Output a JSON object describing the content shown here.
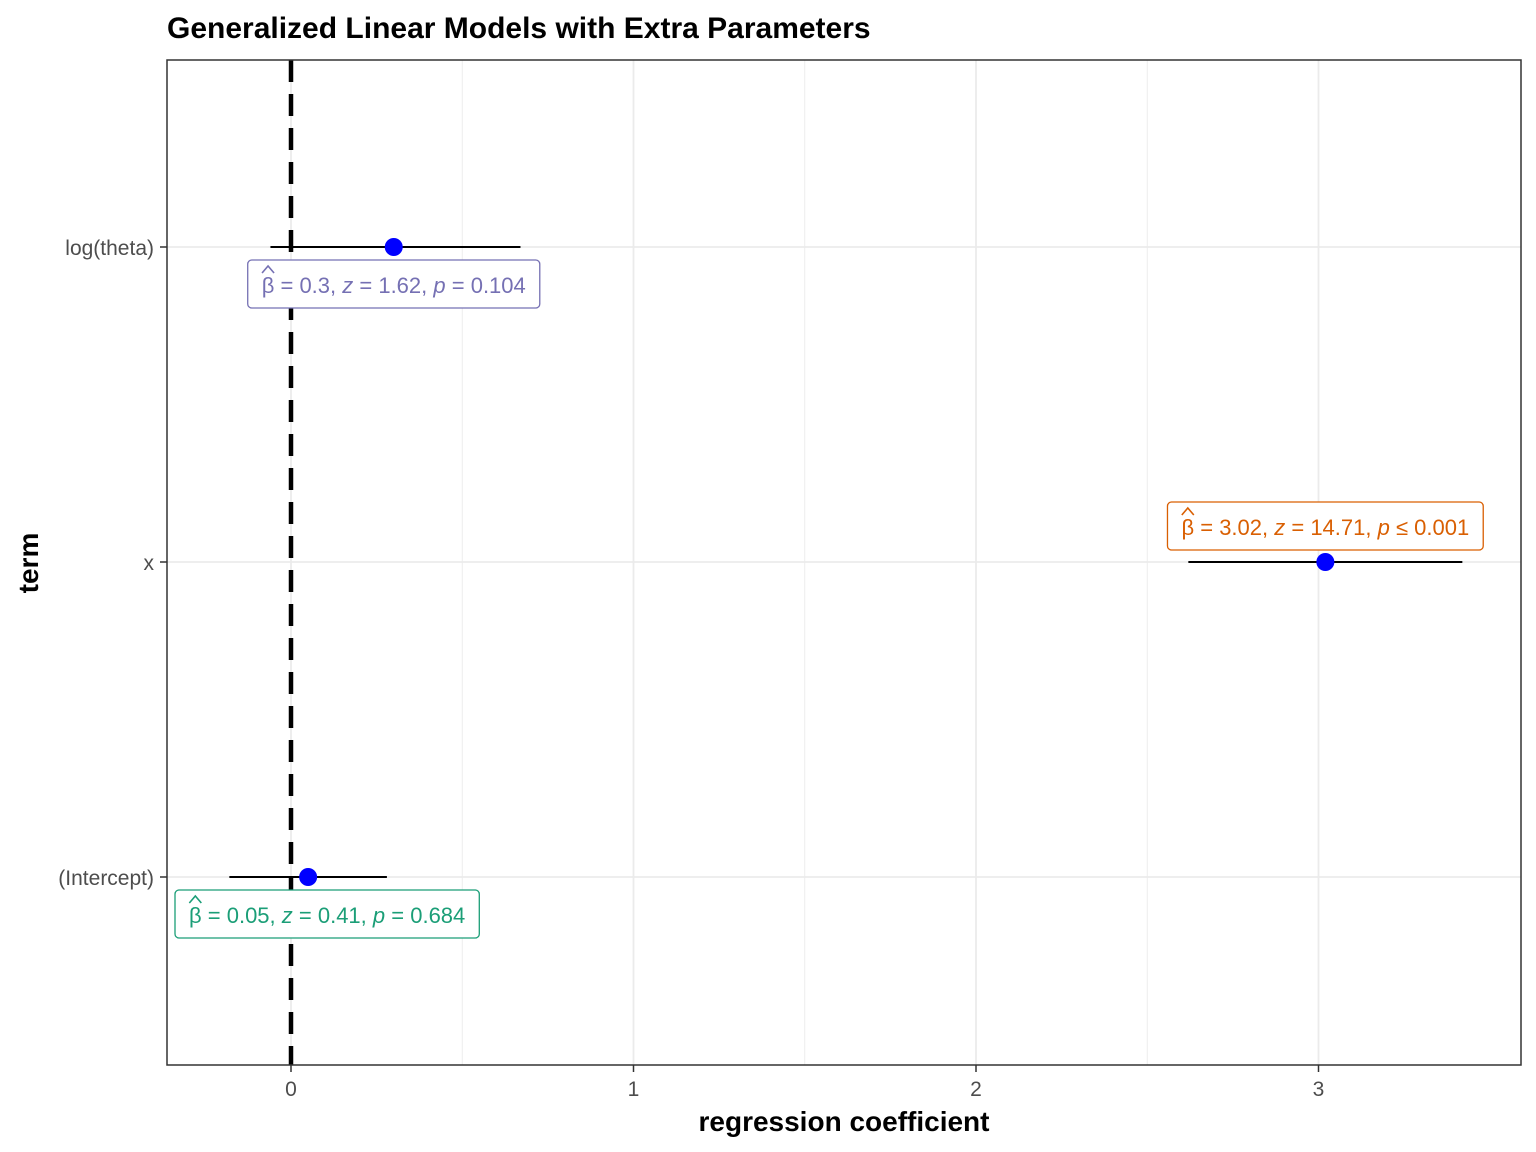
{
  "chart_data": {
    "type": "forest",
    "title": "Generalized Linear Models with Extra Parameters",
    "xlabel": "regression coefficient",
    "ylabel": "term",
    "xlim": [
      -0.36,
      3.6
    ],
    "x_ticks": [
      0,
      1,
      2,
      3
    ],
    "x_tick_labels": [
      "0",
      "1",
      "2",
      "3"
    ],
    "reference_line": 0,
    "grid": true,
    "point_color": "#0000FF",
    "terms": [
      {
        "name": "(Intercept)",
        "estimate": 0.05,
        "conf_low": -0.18,
        "conf_high": 0.28,
        "label_color": "#1B9E77",
        "label_position": "below",
        "label": {
          "beta": "β",
          "eq1": " = 0.05, ",
          "z": "z",
          "eq2": " = 0.41, ",
          "p": "p",
          "eq3": " = 0.684"
        }
      },
      {
        "name": "x",
        "estimate": 3.02,
        "conf_low": 2.62,
        "conf_high": 3.42,
        "label_color": "#D95F02",
        "label_position": "above",
        "label": {
          "beta": "β",
          "eq1": " = 3.02, ",
          "z": "z",
          "eq2": " = 14.71, ",
          "p": "p",
          "eq3": " ≤ 0.001"
        }
      },
      {
        "name": "log(theta)",
        "estimate": 0.3,
        "conf_low": -0.06,
        "conf_high": 0.67,
        "label_color": "#7570B3",
        "label_position": "below",
        "label": {
          "beta": "β",
          "eq1": " = 0.3, ",
          "z": "z",
          "eq2": " = 1.62, ",
          "p": "p",
          "eq3": " = 0.104"
        }
      }
    ]
  }
}
